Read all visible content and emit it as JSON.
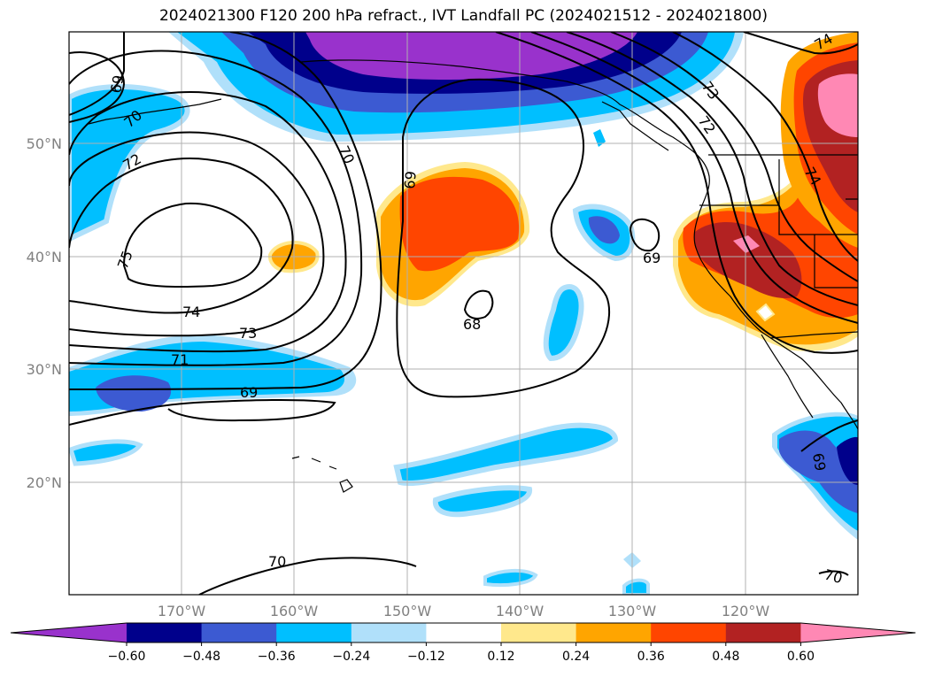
{
  "title": "2024021300 F120 200 hPa refract., IVT Landfall PC (2024021512 - 2024021800)",
  "latitude_labels": [
    "50°N",
    "40°N",
    "30°N",
    "20°N"
  ],
  "longitude_labels": [
    "170°W",
    "160°W",
    "150°W",
    "140°W",
    "130°W",
    "120°W"
  ],
  "contour_labels": [
    "69",
    "70",
    "72",
    "75",
    "74",
    "73",
    "71",
    "69",
    "70",
    "69",
    "68",
    "69",
    "73",
    "72",
    "74",
    "74",
    "69",
    "70",
    "70"
  ],
  "colorbar": {
    "ticks": [
      "-0.60",
      "-0.48",
      "-0.36",
      "-0.24",
      "-0.12",
      "0.12",
      "0.24",
      "0.36",
      "0.48",
      "0.60"
    ],
    "colors": [
      "#9932cc",
      "#00008b",
      "#3c5ad2",
      "#00bfff",
      "#b0e0fa",
      "#ffffff",
      "#ffe88c",
      "#ffa500",
      "#ff4500",
      "#b22222",
      "#ff88b4"
    ]
  },
  "colors": {
    "purple": "#9932cc",
    "navy": "#00008b",
    "royal": "#3c5ad2",
    "sky": "#00bfff",
    "pale_blue": "#b0e0fa",
    "pale_yellow": "#ffe88c",
    "orange": "#ffa500",
    "red_orange": "#ff4500",
    "dark_red": "#b22222",
    "pink": "#ff88b4"
  }
}
